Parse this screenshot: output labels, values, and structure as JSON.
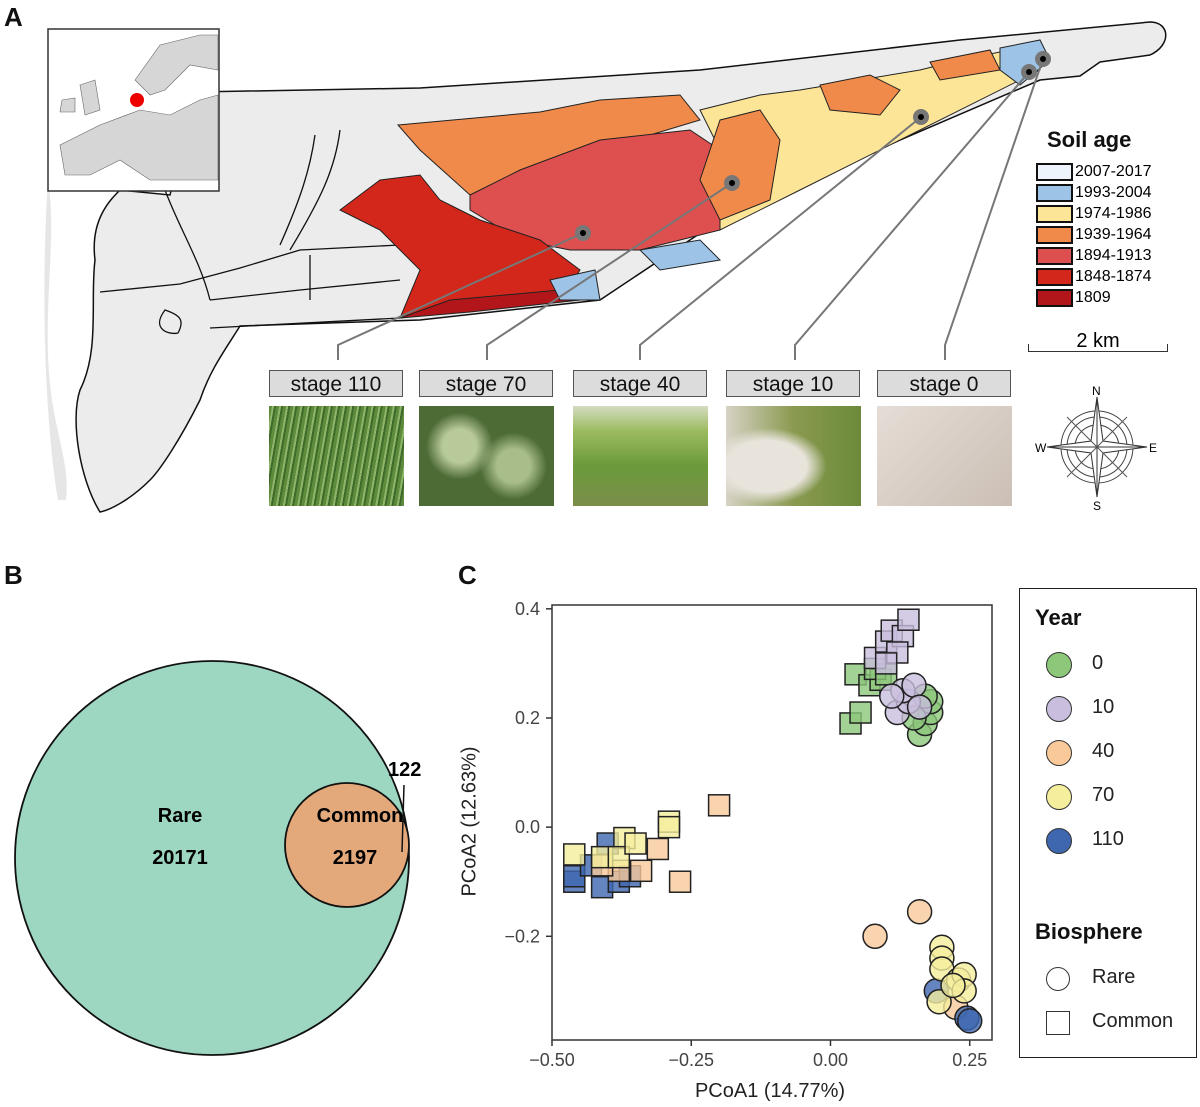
{
  "panels": {
    "a": "A",
    "b": "B",
    "c": "C"
  },
  "map": {
    "legend_title": "Soil age",
    "legend": [
      {
        "label": "2007-2017",
        "color": "#eef4fb"
      },
      {
        "label": "1993-2004",
        "color": "#9dc3e6"
      },
      {
        "label": "1974-1986",
        "color": "#fde598"
      },
      {
        "label": "1939-1964",
        "color": "#f08a4b"
      },
      {
        "label": "1894-1913",
        "color": "#de4f4f"
      },
      {
        "label": "1848-1874",
        "color": "#d2271a"
      },
      {
        "label": "1809",
        "color": "#b3161a"
      }
    ],
    "scale_bar": "2 km",
    "compass": {
      "n": "N",
      "e": "E",
      "s": "S",
      "w": "W"
    },
    "stages": [
      {
        "label": "stage 110",
        "photo": "tall green grass"
      },
      {
        "label": "stage 70",
        "photo": "shrubs"
      },
      {
        "label": "stage 40",
        "photo": "green meadow"
      },
      {
        "label": "stage 10",
        "photo": "sand with grass patches"
      },
      {
        "label": "stage 0",
        "photo": "bare sand"
      }
    ]
  },
  "venn": {
    "sets": [
      {
        "name": "Rare",
        "value": "20171",
        "color": "#9dd6c1"
      },
      {
        "name": "Common",
        "value": "2197",
        "color": "#e4a97b"
      }
    ],
    "overlap_label": "122"
  },
  "chart_data": {
    "type": "scatter",
    "xlabel": "PCoA1 (14.77%)",
    "ylabel": "PCoA2 (12.63%)",
    "xlim": [
      -0.5,
      0.29
    ],
    "ylim": [
      -0.39,
      0.407
    ],
    "xticks": [
      "−0.50",
      "−0.25",
      "0.00",
      "0.25"
    ],
    "xtick_values": [
      -0.5,
      -0.25,
      0,
      0.25
    ],
    "yticks": [
      "0.4",
      "0.2",
      "0.0",
      "−0.2"
    ],
    "ytick_values": [
      0.4,
      0.2,
      0,
      -0.2
    ],
    "legend_year_title": "Year",
    "legend_biosphere_title": "Biosphere",
    "years": [
      {
        "label": "0",
        "color": "#8cc77a"
      },
      {
        "label": "10",
        "color": "#c9bedd"
      },
      {
        "label": "40",
        "color": "#f9c99a"
      },
      {
        "label": "70",
        "color": "#f5ee9c"
      },
      {
        "label": "110",
        "color": "#3f67b0"
      }
    ],
    "biospheres": [
      {
        "label": "Rare",
        "shape": "circle"
      },
      {
        "label": "Common",
        "shape": "square"
      }
    ],
    "points": [
      {
        "year": "0",
        "bio": "Common",
        "x": 0.036,
        "y": 0.19
      },
      {
        "year": "0",
        "bio": "Common",
        "x": 0.054,
        "y": 0.21
      },
      {
        "year": "0",
        "bio": "Common",
        "x": 0.045,
        "y": 0.28
      },
      {
        "year": "0",
        "bio": "Common",
        "x": 0.07,
        "y": 0.26
      },
      {
        "year": "0",
        "bio": "Common",
        "x": 0.09,
        "y": 0.27
      },
      {
        "year": "0",
        "bio": "Common",
        "x": 0.08,
        "y": 0.29
      },
      {
        "year": "0",
        "bio": "Common",
        "x": 0.1,
        "y": 0.28
      },
      {
        "year": "10",
        "bio": "Common",
        "x": 0.08,
        "y": 0.31
      },
      {
        "year": "10",
        "bio": "Common",
        "x": 0.1,
        "y": 0.34
      },
      {
        "year": "10",
        "bio": "Common",
        "x": 0.11,
        "y": 0.36
      },
      {
        "year": "10",
        "bio": "Common",
        "x": 0.13,
        "y": 0.35
      },
      {
        "year": "10",
        "bio": "Common",
        "x": 0.14,
        "y": 0.38
      },
      {
        "year": "10",
        "bio": "Common",
        "x": 0.12,
        "y": 0.32
      },
      {
        "year": "10",
        "bio": "Common",
        "x": 0.1,
        "y": 0.3
      },
      {
        "year": "0",
        "bio": "Rare",
        "x": 0.16,
        "y": 0.17
      },
      {
        "year": "0",
        "bio": "Rare",
        "x": 0.17,
        "y": 0.19
      },
      {
        "year": "0",
        "bio": "Rare",
        "x": 0.18,
        "y": 0.21
      },
      {
        "year": "0",
        "bio": "Rare",
        "x": 0.18,
        "y": 0.23
      },
      {
        "year": "0",
        "bio": "Rare",
        "x": 0.15,
        "y": 0.2
      },
      {
        "year": "0",
        "bio": "Rare",
        "x": 0.17,
        "y": 0.24
      },
      {
        "year": "10",
        "bio": "Rare",
        "x": 0.12,
        "y": 0.21
      },
      {
        "year": "10",
        "bio": "Rare",
        "x": 0.14,
        "y": 0.23
      },
      {
        "year": "10",
        "bio": "Rare",
        "x": 0.13,
        "y": 0.25
      },
      {
        "year": "10",
        "bio": "Rare",
        "x": 0.15,
        "y": 0.26
      },
      {
        "year": "10",
        "bio": "Rare",
        "x": 0.16,
        "y": 0.22
      },
      {
        "year": "10",
        "bio": "Rare",
        "x": 0.11,
        "y": 0.24
      },
      {
        "year": "110",
        "bio": "Common",
        "x": -0.46,
        "y": -0.1
      },
      {
        "year": "110",
        "bio": "Common",
        "x": -0.46,
        "y": -0.09
      },
      {
        "year": "110",
        "bio": "Common",
        "x": -0.41,
        "y": -0.11
      },
      {
        "year": "110",
        "bio": "Common",
        "x": -0.38,
        "y": -0.1
      },
      {
        "year": "110",
        "bio": "Common",
        "x": -0.36,
        "y": -0.09
      },
      {
        "year": "110",
        "bio": "Common",
        "x": -0.4,
        "y": -0.03
      },
      {
        "year": "110",
        "bio": "Common",
        "x": -0.43,
        "y": -0.07
      },
      {
        "year": "40",
        "bio": "Common",
        "x": -0.2,
        "y": 0.04
      },
      {
        "year": "40",
        "bio": "Common",
        "x": -0.27,
        "y": -0.1
      },
      {
        "year": "40",
        "bio": "Common",
        "x": -0.31,
        "y": -0.04
      },
      {
        "year": "40",
        "bio": "Common",
        "x": -0.34,
        "y": -0.08
      },
      {
        "year": "40",
        "bio": "Common",
        "x": -0.38,
        "y": -0.08
      },
      {
        "year": "40",
        "bio": "Common",
        "x": -0.41,
        "y": -0.07
      },
      {
        "year": "70",
        "bio": "Common",
        "x": -0.29,
        "y": 0.01
      },
      {
        "year": "70",
        "bio": "Common",
        "x": -0.29,
        "y": 0.0
      },
      {
        "year": "70",
        "bio": "Common",
        "x": -0.37,
        "y": -0.02
      },
      {
        "year": "70",
        "bio": "Common",
        "x": -0.46,
        "y": -0.05
      },
      {
        "year": "70",
        "bio": "Common",
        "x": -0.41,
        "y": -0.055
      },
      {
        "year": "70",
        "bio": "Common",
        "x": -0.38,
        "y": -0.055
      },
      {
        "year": "70",
        "bio": "Common",
        "x": -0.35,
        "y": -0.03
      },
      {
        "year": "40",
        "bio": "Rare",
        "x": 0.08,
        "y": -0.2
      },
      {
        "year": "40",
        "bio": "Rare",
        "x": 0.16,
        "y": -0.155
      },
      {
        "year": "40",
        "bio": "Rare",
        "x": 0.225,
        "y": -0.33
      },
      {
        "year": "110",
        "bio": "Rare",
        "x": 0.19,
        "y": -0.3
      },
      {
        "year": "110",
        "bio": "Rare",
        "x": 0.245,
        "y": -0.35
      },
      {
        "year": "110",
        "bio": "Rare",
        "x": 0.25,
        "y": -0.355
      },
      {
        "year": "70",
        "bio": "Rare",
        "x": 0.2,
        "y": -0.22
      },
      {
        "year": "70",
        "bio": "Rare",
        "x": 0.2,
        "y": -0.24
      },
      {
        "year": "70",
        "bio": "Rare",
        "x": 0.2,
        "y": -0.26
      },
      {
        "year": "70",
        "bio": "Rare",
        "x": 0.23,
        "y": -0.28
      },
      {
        "year": "70",
        "bio": "Rare",
        "x": 0.24,
        "y": -0.27
      },
      {
        "year": "70",
        "bio": "Rare",
        "x": 0.24,
        "y": -0.3
      },
      {
        "year": "70",
        "bio": "Rare",
        "x": 0.195,
        "y": -0.32
      },
      {
        "year": "70",
        "bio": "Rare",
        "x": 0.22,
        "y": -0.29
      }
    ]
  }
}
